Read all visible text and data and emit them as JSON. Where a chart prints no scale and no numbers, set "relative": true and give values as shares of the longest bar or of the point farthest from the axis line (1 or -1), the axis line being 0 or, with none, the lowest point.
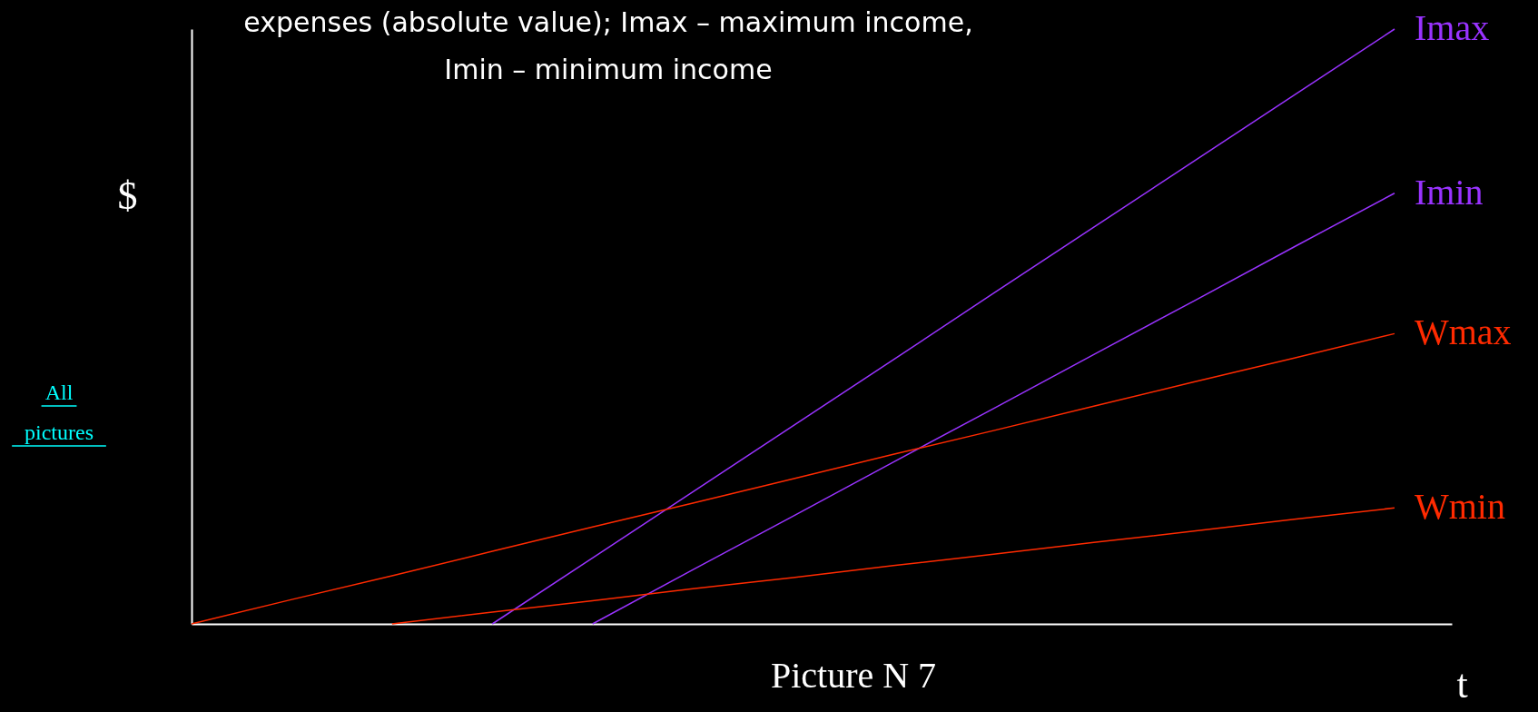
{
  "chart_data": {
    "type": "line",
    "title": "expenses (absolute value); Imax – maximum income, Imin – minimum income",
    "xlabel": "t",
    "ylabel": "$",
    "relative": true,
    "tick_labels": false,
    "grid": false,
    "legend": false,
    "marker": "none",
    "line_style": "solid",
    "annotations": [
      "All pictures",
      "Picture N 7"
    ],
    "categories": [
      null,
      null,
      null,
      null,
      null,
      null,
      null,
      null,
      null,
      null,
      null,
      null,
      null
    ],
    "series": [
      {
        "name": "Imax",
        "color": "#9933ff",
        "values": [
          null,
          null,
          null,
          0,
          0.111,
          0.222,
          0.333,
          0.444,
          0.556,
          0.667,
          0.778,
          0.889,
          1
        ]
      },
      {
        "name": "Imin",
        "color": "#9933ff",
        "values": [
          null,
          null,
          null,
          null,
          0,
          0.091,
          0.181,
          0.272,
          0.362,
          0.453,
          0.543,
          0.634,
          0.724
        ]
      },
      {
        "name": "Wmax",
        "color": "#ff2a00",
        "values": [
          0,
          0.041,
          0.081,
          0.122,
          0.163,
          0.203,
          0.244,
          0.285,
          0.325,
          0.366,
          0.407,
          0.447,
          0.488
        ]
      },
      {
        "name": "Wmin",
        "color": "#ff2a00",
        "values": [
          null,
          null,
          0,
          0.02,
          0.039,
          0.059,
          0.078,
          0.098,
          0.117,
          0.137,
          0.156,
          0.176,
          0.195
        ]
      }
    ]
  }
}
